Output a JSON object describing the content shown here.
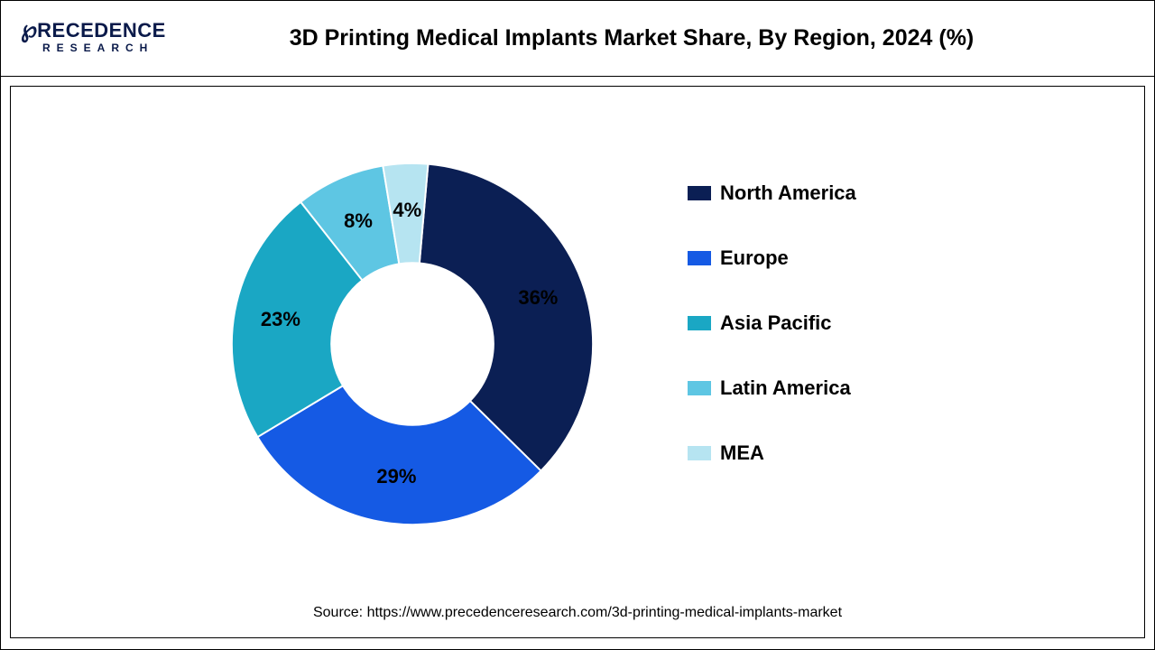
{
  "logo": {
    "line1_icon": "℘",
    "line1_text": "RECEDENCE",
    "line2_text": "RESEARCH",
    "color": "#0a1a4a"
  },
  "chart": {
    "type": "donut",
    "title": "3D Printing Medical Implants Market Share, By Region, 2024 (%)",
    "title_fontsize": 25,
    "title_fontweight": 700,
    "outer_radius": 205,
    "inner_radius": 92,
    "start_angle_deg": 5,
    "direction": "clockwise",
    "slice_gap_color": "#ffffff",
    "slice_gap_width": 2,
    "background_color": "#ffffff",
    "label_fontsize": 22,
    "label_fontweight": 700,
    "label_color": "#000000",
    "segments": [
      {
        "name": "North America",
        "value": 36,
        "color": "#0b1f54",
        "label": "36%"
      },
      {
        "name": "Europe",
        "value": 29,
        "color": "#155ae4",
        "label": "29%"
      },
      {
        "name": "Asia Pacific",
        "value": 23,
        "color": "#1aa7c4",
        "label": "23%"
      },
      {
        "name": "Latin America",
        "value": 8,
        "color": "#5ec6e3",
        "label": "8%"
      },
      {
        "name": "MEA",
        "value": 4,
        "color": "#b6e4f1",
        "label": "4%"
      }
    ]
  },
  "legend": {
    "items": [
      {
        "label": "North America",
        "color": "#0b1f54"
      },
      {
        "label": "Europe",
        "color": "#155ae4"
      },
      {
        "label": "Asia Pacific",
        "color": "#1aa7c4"
      },
      {
        "label": "Latin America",
        "color": "#5ec6e3"
      },
      {
        "label": "MEA",
        "color": "#b6e4f1"
      }
    ],
    "fontsize": 22,
    "fontweight": 700,
    "swatch_width": 26,
    "swatch_height": 16,
    "item_gap": 46
  },
  "source": {
    "prefix": "Source: ",
    "url": "https://www.precedenceresearch.com/3d-printing-medical-implants-market",
    "fontsize": 16
  }
}
